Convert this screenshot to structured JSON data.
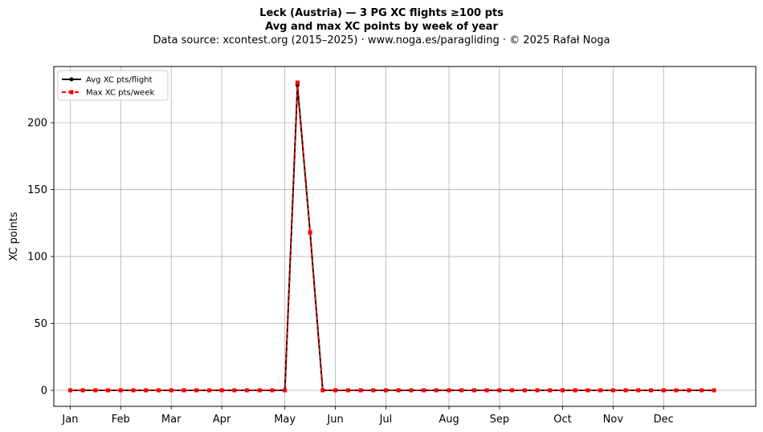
{
  "chart_data": {
    "type": "line",
    "title": "Leck (Austria)  —  3 PG XC flights ≥100 pts",
    "subtitle": "Avg and max XC points by week of year",
    "source_note": "Data source: xcontest.org (2015–2025)  ·  www.noga.es/paragliding  ·  © 2025 Rafał Noga",
    "xlabel": "",
    "ylabel": "XC points",
    "x_weeks": [
      1,
      2,
      3,
      4,
      5,
      6,
      7,
      8,
      9,
      10,
      11,
      12,
      13,
      14,
      15,
      16,
      17,
      18,
      19,
      20,
      21,
      22,
      23,
      24,
      25,
      26,
      27,
      28,
      29,
      30,
      31,
      32,
      33,
      34,
      35,
      36,
      37,
      38,
      39,
      40,
      41,
      42,
      43,
      44,
      45,
      46,
      47,
      48,
      49,
      50,
      51,
      52
    ],
    "xlim": [
      -0.3,
      55.3
    ],
    "ylim": [
      -12,
      242
    ],
    "yticks": [
      0,
      50,
      100,
      150,
      200
    ],
    "month_ticks": [
      {
        "label": "Jan",
        "week": 1
      },
      {
        "label": "Feb",
        "week": 5
      },
      {
        "label": "Mar",
        "week": 9
      },
      {
        "label": "Apr",
        "week": 13
      },
      {
        "label": "May",
        "week": 18
      },
      {
        "label": "Jun",
        "week": 22
      },
      {
        "label": "Jul",
        "week": 26
      },
      {
        "label": "Aug",
        "week": 31
      },
      {
        "label": "Sep",
        "week": 35
      },
      {
        "label": "Oct",
        "week": 40
      },
      {
        "label": "Nov",
        "week": 44
      },
      {
        "label": "Dec",
        "week": 48
      }
    ],
    "grid": true,
    "legend_position": "top-left",
    "series": [
      {
        "name": "Avg XC pts/flight",
        "color": "#000000",
        "style": "solid",
        "marker": "circle",
        "values": [
          0,
          0,
          0,
          0,
          0,
          0,
          0,
          0,
          0,
          0,
          0,
          0,
          0,
          0,
          0,
          0,
          0,
          0,
          228,
          118,
          0,
          0,
          0,
          0,
          0,
          0,
          0,
          0,
          0,
          0,
          0,
          0,
          0,
          0,
          0,
          0,
          0,
          0,
          0,
          0,
          0,
          0,
          0,
          0,
          0,
          0,
          0,
          0,
          0,
          0,
          0,
          0
        ]
      },
      {
        "name": "Max XC pts/week",
        "color": "#ff0000",
        "style": "dashed",
        "marker": "square",
        "values": [
          0,
          0,
          0,
          0,
          0,
          0,
          0,
          0,
          0,
          0,
          0,
          0,
          0,
          0,
          0,
          0,
          0,
          0,
          230,
          118,
          0,
          0,
          0,
          0,
          0,
          0,
          0,
          0,
          0,
          0,
          0,
          0,
          0,
          0,
          0,
          0,
          0,
          0,
          0,
          0,
          0,
          0,
          0,
          0,
          0,
          0,
          0,
          0,
          0,
          0,
          0,
          0
        ]
      }
    ]
  }
}
